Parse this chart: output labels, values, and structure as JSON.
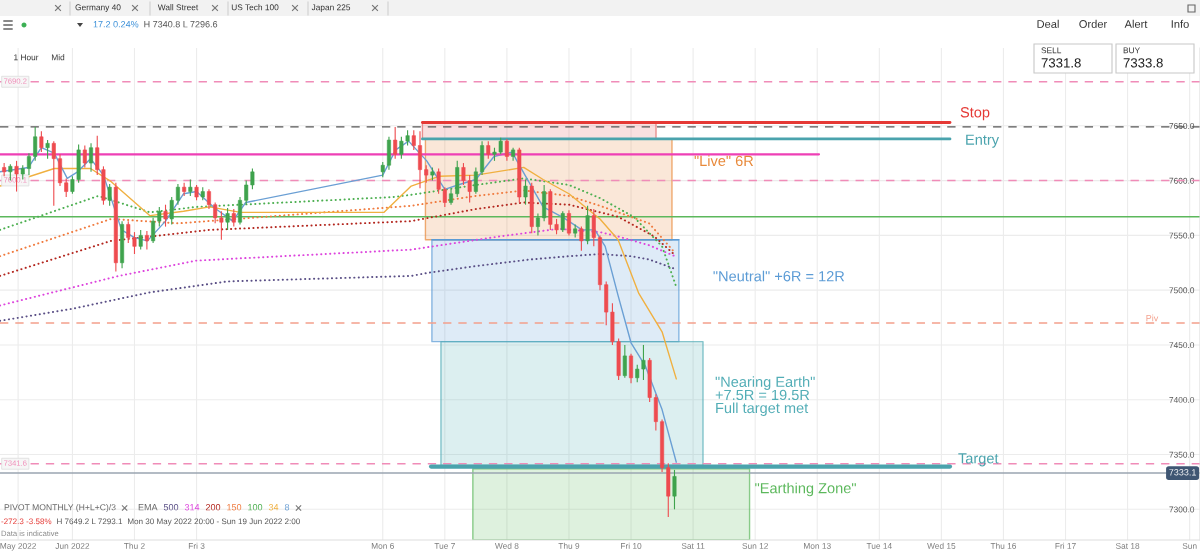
{
  "chart_data": {
    "type": "candlestick",
    "x": [
      "2022-05-30T21:36",
      "2022-05-31T00:00",
      "2022-05-31T02:24",
      "2022-05-31T04:48",
      "2022-05-31T07:12",
      "2022-05-31T09:36",
      "2022-05-31T12:00",
      "2022-05-31T14:24",
      "2022-05-31T16:48",
      "2022-05-31T19:12",
      "2022-05-31T21:36",
      "2022-06-01T00:00",
      "2022-06-01T02:24",
      "2022-06-01T04:48",
      "2022-06-01T07:12",
      "2022-06-01T09:36",
      "2022-06-01T12:00",
      "2022-06-01T14:24",
      "2022-06-01T16:48",
      "2022-06-01T19:12",
      "2022-06-01T21:36",
      "2022-06-02T00:00",
      "2022-06-02T02:24",
      "2022-06-02T04:48",
      "2022-06-02T07:12",
      "2022-06-02T09:36",
      "2022-06-02T12:00",
      "2022-06-02T14:24",
      "2022-06-02T16:48",
      "2022-06-02T19:12",
      "2022-06-02T21:36",
      "2022-06-03T00:00",
      "2022-06-03T02:24",
      "2022-06-03T04:48",
      "2022-06-03T07:12",
      "2022-06-03T09:36",
      "2022-06-03T12:00",
      "2022-06-03T14:24",
      "2022-06-03T16:48",
      "2022-06-03T19:12",
      "2022-06-03T21:36",
      "2022-06-06T00:00",
      "2022-06-06T02:24",
      "2022-06-06T04:48",
      "2022-06-06T07:12",
      "2022-06-06T09:36",
      "2022-06-06T12:00",
      "2022-06-06T14:24",
      "2022-06-06T16:48",
      "2022-06-06T19:12",
      "2022-06-06T21:36",
      "2022-06-07T00:00",
      "2022-06-07T02:24",
      "2022-06-07T04:48",
      "2022-06-07T07:12",
      "2022-06-07T09:36",
      "2022-06-07T12:00",
      "2022-06-07T14:24",
      "2022-06-07T16:48",
      "2022-06-07T19:12",
      "2022-06-07T21:36",
      "2022-06-08T00:00",
      "2022-06-08T02:24",
      "2022-06-08T04:48",
      "2022-06-08T07:12",
      "2022-06-08T09:36",
      "2022-06-08T12:00",
      "2022-06-08T14:24",
      "2022-06-08T16:48",
      "2022-06-08T19:12",
      "2022-06-08T21:36",
      "2022-06-09T00:00",
      "2022-06-09T02:24",
      "2022-06-09T04:48",
      "2022-06-09T07:12",
      "2022-06-09T09:36",
      "2022-06-09T12:00",
      "2022-06-09T14:24",
      "2022-06-09T16:48",
      "2022-06-09T19:12",
      "2022-06-09T21:36",
      "2022-06-10T00:00",
      "2022-06-10T02:24",
      "2022-06-10T04:48",
      "2022-06-10T07:12",
      "2022-06-10T09:36",
      "2022-06-10T12:00",
      "2022-06-10T14:24",
      "2022-06-10T16:48"
    ],
    "ohlc": [
      [
        7612,
        7616,
        7604,
        7608
      ],
      [
        7608,
        7615,
        7600,
        7613
      ],
      [
        7613,
        7618,
        7590,
        7606
      ],
      [
        7606,
        7614,
        7601,
        7611
      ],
      [
        7611,
        7625,
        7605,
        7622
      ],
      [
        7622,
        7649,
        7618,
        7640
      ],
      [
        7640,
        7645,
        7626,
        7630
      ],
      [
        7630,
        7637,
        7620,
        7634
      ],
      [
        7634,
        7636,
        7577,
        7620
      ],
      [
        7620,
        7624,
        7595,
        7598
      ],
      [
        7598,
        7602,
        7585,
        7590
      ],
      [
        7590,
        7604,
        7588,
        7601
      ],
      [
        7601,
        7633,
        7598,
        7628
      ],
      [
        7628,
        7632,
        7612,
        7616
      ],
      [
        7616,
        7634,
        7608,
        7630
      ],
      [
        7630,
        7641,
        7605,
        7610
      ],
      [
        7610,
        7613,
        7578,
        7582
      ],
      [
        7582,
        7597,
        7577,
        7594
      ],
      [
        7594,
        7598,
        7517,
        7525
      ],
      [
        7525,
        7563,
        7520,
        7560
      ],
      [
        7560,
        7563,
        7543,
        7548
      ],
      [
        7548,
        7553,
        7533,
        7540
      ],
      [
        7540,
        7555,
        7537,
        7550
      ],
      [
        7550,
        7554,
        7537,
        7545
      ],
      [
        7545,
        7566,
        7543,
        7563
      ],
      [
        7563,
        7576,
        7558,
        7572
      ],
      [
        7572,
        7578,
        7558,
        7565
      ],
      [
        7565,
        7585,
        7560,
        7582
      ],
      [
        7582,
        7597,
        7578,
        7594
      ],
      [
        7594,
        7598,
        7586,
        7590
      ],
      [
        7590,
        7601,
        7586,
        7594
      ],
      [
        7594,
        7596,
        7582,
        7585
      ],
      [
        7585,
        7594,
        7582,
        7590
      ],
      [
        7590,
        7592,
        7574,
        7578
      ],
      [
        7578,
        7580,
        7561,
        7566
      ],
      [
        7566,
        7572,
        7546,
        7562
      ],
      [
        7562,
        7575,
        7555,
        7570
      ],
      [
        7570,
        7574,
        7558,
        7562
      ],
      [
        7562,
        7585,
        7560,
        7582
      ],
      [
        7582,
        7600,
        7578,
        7596
      ],
      [
        7596,
        7611,
        7592,
        7608
      ],
      [
        7608,
        7617,
        7603,
        7614
      ],
      [
        7614,
        7640,
        7610,
        7637
      ],
      [
        7637,
        7649,
        7620,
        7624
      ],
      [
        7624,
        7640,
        7620,
        7636
      ],
      [
        7636,
        7646,
        7632,
        7641
      ],
      [
        7641,
        7646,
        7628,
        7632
      ],
      [
        7632,
        7645,
        7593,
        7610
      ],
      [
        7610,
        7614,
        7598,
        7605
      ],
      [
        7605,
        7612,
        7600,
        7608
      ],
      [
        7608,
        7611,
        7588,
        7592
      ],
      [
        7592,
        7594,
        7576,
        7580
      ],
      [
        7580,
        7592,
        7578,
        7588
      ],
      [
        7588,
        7618,
        7585,
        7612
      ],
      [
        7612,
        7616,
        7596,
        7600
      ],
      [
        7600,
        7605,
        7580,
        7590
      ],
      [
        7590,
        7612,
        7588,
        7608
      ],
      [
        7608,
        7636,
        7605,
        7632
      ],
      [
        7632,
        7636,
        7620,
        7624
      ],
      [
        7624,
        7630,
        7618,
        7626
      ],
      [
        7626,
        7639,
        7624,
        7636
      ],
      [
        7636,
        7638,
        7618,
        7622
      ],
      [
        7622,
        7630,
        7618,
        7628
      ],
      [
        7628,
        7630,
        7580,
        7585
      ],
      [
        7585,
        7601,
        7578,
        7595
      ],
      [
        7595,
        7598,
        7552,
        7558
      ],
      [
        7558,
        7570,
        7550,
        7566
      ],
      [
        7566,
        7596,
        7563,
        7590
      ],
      [
        7590,
        7592,
        7555,
        7560
      ],
      [
        7560,
        7565,
        7551,
        7555
      ],
      [
        7555,
        7572,
        7553,
        7570
      ],
      [
        7570,
        7573,
        7550,
        7552
      ],
      [
        7552,
        7560,
        7548,
        7556
      ],
      [
        7556,
        7558,
        7536,
        7545
      ],
      [
        7545,
        7577,
        7542,
        7568
      ],
      [
        7568,
        7574,
        7540,
        7548
      ],
      [
        7548,
        7550,
        7500,
        7505
      ],
      [
        7505,
        7508,
        7468,
        7480
      ],
      [
        7480,
        7488,
        7450,
        7453
      ],
      [
        7453,
        7456,
        7418,
        7422
      ],
      [
        7422,
        7450,
        7420,
        7440
      ],
      [
        7440,
        7442,
        7415,
        7420
      ],
      [
        7420,
        7432,
        7416,
        7428
      ],
      [
        7428,
        7450,
        7418,
        7436
      ],
      [
        7436,
        7438,
        7398,
        7402
      ],
      [
        7402,
        7405,
        7372,
        7380
      ],
      [
        7380,
        7382,
        7334,
        7338
      ],
      [
        7338,
        7342,
        7293.1,
        7312
      ],
      [
        7312,
        7336,
        7300,
        7330
      ]
    ],
    "colors": [
      "#ee4b4f",
      "#3fa34d",
      "#ee4b4f",
      "#3fa34d",
      "#3fa34d",
      "#3fa34d",
      "#ee4b4f",
      "#3fa34d",
      "#ee4b4f",
      "#ee4b4f",
      "#ee4b4f",
      "#3fa34d",
      "#3fa34d",
      "#ee4b4f",
      "#3fa34d",
      "#ee4b4f",
      "#ee4b4f",
      "#3fa34d",
      "#ee4b4f",
      "#3fa34d",
      "#ee4b4f",
      "#ee4b4f",
      "#3fa34d",
      "#ee4b4f",
      "#3fa34d",
      "#3fa34d",
      "#ee4b4f",
      "#3fa34d",
      "#3fa34d",
      "#ee4b4f",
      "#3fa34d",
      "#ee4b4f",
      "#3fa34d",
      "#ee4b4f",
      "#ee4b4f",
      "#ee4b4f",
      "#3fa34d",
      "#ee4b4f",
      "#3fa34d",
      "#3fa34d",
      "#3fa34d",
      "#3fa34d",
      "#3fa34d",
      "#ee4b4f",
      "#3fa34d",
      "#3fa34d",
      "#ee4b4f",
      "#ee4b4f",
      "#ee4b4f",
      "#3fa34d",
      "#ee4b4f",
      "#ee4b4f",
      "#3fa34d",
      "#3fa34d",
      "#ee4b4f",
      "#ee4b4f",
      "#3fa34d",
      "#3fa34d",
      "#ee4b4f",
      "#3fa34d",
      "#3fa34d",
      "#ee4b4f",
      "#3fa34d",
      "#ee4b4f",
      "#3fa34d",
      "#ee4b4f",
      "#3fa34d",
      "#3fa34d",
      "#ee4b4f",
      "#ee4b4f",
      "#3fa34d",
      "#ee4b4f",
      "#3fa34d",
      "#ee4b4f",
      "#3fa34d",
      "#ee4b4f",
      "#ee4b4f",
      "#ee4b4f",
      "#ee4b4f",
      "#ee4b4f",
      "#3fa34d",
      "#ee4b4f",
      "#3fa34d",
      "#3fa34d",
      "#ee4b4f",
      "#ee4b4f",
      "#ee4b4f",
      "#ee4b4f",
      "#3fa34d"
    ],
    "xlim": [
      "2022-05-30T20:00",
      "2022-06-19T04:00"
    ],
    "ylim": [
      7272,
      7721
    ],
    "xticks": [
      {
        "value": "2022-05-31T03:00",
        "label": "May 2022"
      },
      {
        "value": "2022-06-01",
        "label": "Jun 2022"
      },
      {
        "value": "2022-06-02",
        "label": "Thu 2"
      },
      {
        "value": "2022-06-03",
        "label": "Fri 3"
      },
      {
        "value": "2022-06-06",
        "label": "Mon 6"
      },
      {
        "value": "2022-06-07",
        "label": "Tue 7"
      },
      {
        "value": "2022-06-08",
        "label": "Wed 8"
      },
      {
        "value": "2022-06-09",
        "label": "Thu 9"
      },
      {
        "value": "2022-06-10",
        "label": "Fri 10"
      },
      {
        "value": "2022-06-11",
        "label": "Sat 11"
      },
      {
        "value": "2022-06-12",
        "label": "Sun 12"
      },
      {
        "value": "2022-06-13",
        "label": "Mon 13"
      },
      {
        "value": "2022-06-14",
        "label": "Tue 14"
      },
      {
        "value": "2022-06-15",
        "label": "Wed 15"
      },
      {
        "value": "2022-06-16",
        "label": "Thu 16"
      },
      {
        "value": "2022-06-17",
        "label": "Fri 17"
      },
      {
        "value": "2022-06-18",
        "label": "Sat 18"
      },
      {
        "value": "2022-06-19",
        "label": "Sun"
      }
    ],
    "yticks": [
      {
        "value": 7300,
        "label": "7300.0"
      },
      {
        "value": 7350,
        "label": "7350.0"
      },
      {
        "value": 7400,
        "label": "7400.0"
      },
      {
        "value": 7450,
        "label": "7450.0"
      },
      {
        "value": 7500,
        "label": "7500.0"
      },
      {
        "value": 7550,
        "label": "7550.0"
      },
      {
        "value": 7600,
        "label": "7600.0"
      },
      {
        "value": 7650,
        "label": "7650.0"
      }
    ],
    "grid": true,
    "legend": "bottom left",
    "legend_title": "EMA",
    "ref_lines": [
      {
        "axis": "y",
        "value": 7690.2,
        "label": "7690.2",
        "color": "#f08cb8",
        "line_style": "dashed"
      },
      {
        "axis": "y",
        "value": 7649,
        "color": "#555555",
        "line_style": "dashed"
      },
      {
        "axis": "y",
        "value": 7600.1,
        "label": "7600.1",
        "color": "#f08cb8",
        "line_style": "dashed"
      },
      {
        "axis": "y",
        "value": 7567,
        "color": "#5cb85c",
        "line_style": "solid"
      },
      {
        "axis": "y",
        "value": 7470,
        "label": "Piv",
        "color": "#f3a08c",
        "line_style": "dashed"
      },
      {
        "axis": "y",
        "value": 7341.6,
        "label": "7341.6",
        "color": "#f08cb8",
        "line_style": "dashed"
      },
      {
        "axis": "y",
        "value": 7333.1,
        "label": "7333.1",
        "color": "#9aa5b1",
        "line_style": "solid"
      }
    ],
    "series": [
      {
        "type": "line",
        "x": [
          "2022-06-06T15:20",
          "2022-06-10T09:40"
        ],
        "values": [
          null,
          null
        ],
        "lower": [
          7638,
          7638
        ],
        "upper": [
          7653,
          7653
        ],
        "color": "#e06666"
      },
      {
        "type": "line",
        "name": "\"Live\" 6R",
        "x": [
          "2022-06-06T16:30",
          "2022-06-10T15:50"
        ],
        "values": [
          null,
          null
        ],
        "lower": [
          7546,
          7546
        ],
        "upper": [
          7638,
          7638
        ],
        "color": "#e8893a"
      },
      {
        "type": "line",
        "name": "\"Neutral\" +6R = 12R",
        "x": [
          "2022-06-06T19:00",
          "2022-06-10T18:30"
        ],
        "values": [
          7546,
          7546
        ],
        "lower": [
          7453,
          7453
        ],
        "upper": [
          7546,
          7546
        ],
        "color": "#5b9bd5"
      },
      {
        "type": "line",
        "name": "\"Nearing Earth\"\n+7.5R = 19.5R\nFull target met",
        "x": [
          "2022-06-06T22:30",
          "2022-06-11T03:50"
        ],
        "values": [
          null,
          null
        ],
        "lower": [
          7340,
          7340
        ],
        "upper": [
          7453,
          7453
        ],
        "color": "#52adb6"
      },
      {
        "type": "line",
        "name": "\"Earthing Zone\"",
        "x": [
          "2022-06-07T10:50",
          "2022-06-11T21:50"
        ],
        "values": [
          null,
          null
        ],
        "lower": [
          7272,
          7272
        ],
        "upper": [
          7337,
          7337
        ],
        "color": "#5cb85c"
      },
      {
        "type": "line",
        "name": "500",
        "color": "#5a4f86",
        "line_style": "dotted",
        "x": [
          "2022-05-30T20:00",
          "2022-06-01T00:00",
          "2022-06-02T06:00",
          "2022-06-03T12:00",
          "2022-06-06T11:00",
          "2022-06-06T18:00",
          "2022-06-07T12:00",
          "2022-06-08T09:00",
          "2022-06-09T00:00",
          "2022-06-09T12:00",
          "2022-06-10T00:00",
          "2022-06-10T07:00",
          "2022-06-10T17:30"
        ],
        "values": [
          7472,
          7483,
          7498,
          7508,
          7513,
          7516,
          7522,
          7528,
          7531,
          7533,
          7531,
          7528,
          7519
        ]
      },
      {
        "type": "line",
        "name": "314",
        "color": "#dd44dd",
        "line_style": "dotted",
        "x": [
          "2022-05-30T20:00",
          "2022-06-01T18:00",
          "2022-06-03T00:00",
          "2022-06-06T11:00",
          "2022-06-07T21:00",
          "2022-06-08T20:00",
          "2022-06-09T12:00",
          "2022-06-09T19:00",
          "2022-06-10T07:00",
          "2022-06-10T17:00"
        ],
        "values": [
          7486,
          7513,
          7527,
          7537,
          7549,
          7556,
          7553,
          7549,
          7541,
          7531
        ]
      },
      {
        "type": "line",
        "name": "200",
        "color": "#b3261e",
        "line_style": "dotted",
        "x": [
          "2022-05-30T20:00",
          "2022-06-01T15:00",
          "2022-06-03T05:00",
          "2022-06-06T11:00",
          "2022-06-07T12:00",
          "2022-06-08T06:30",
          "2022-06-09T00:00",
          "2022-06-09T19:00",
          "2022-06-10T09:00",
          "2022-06-10T17:00"
        ],
        "values": [
          7513,
          7545,
          7555,
          7563,
          7574,
          7580,
          7578,
          7567,
          7549,
          7532
        ]
      },
      {
        "type": "line",
        "name": "150",
        "color": "#f07b3f",
        "line_style": "dotted",
        "x": [
          "2022-05-30T20:00",
          "2022-06-01T15:00",
          "2022-06-02T17:00",
          "2022-06-06T11:00",
          "2022-06-07T12:00",
          "2022-06-08T06:30",
          "2022-06-09T00:00",
          "2022-06-09T12:00",
          "2022-06-10T07:00",
          "2022-06-10T17:00"
        ],
        "values": [
          7531,
          7565,
          7561,
          7577,
          7586,
          7591,
          7586,
          7577,
          7561,
          7534
        ]
      },
      {
        "type": "line",
        "name": "100",
        "color": "#4caf50",
        "line_style": "dotted",
        "x": [
          "2022-05-30T20:00",
          "2022-06-01T10:00",
          "2022-06-02T06:00",
          "2022-06-03T00:00",
          "2022-06-06T04:00",
          "2022-06-06T11:00",
          "2022-06-07T12:00",
          "2022-06-08T06:30",
          "2022-06-09T00:00",
          "2022-06-09T12:00",
          "2022-06-10T01:00",
          "2022-06-10T12:00",
          "2022-06-10T17:30"
        ],
        "values": [
          7555,
          7586,
          7571,
          7576,
          7585,
          7587,
          7596,
          7602,
          7596,
          7584,
          7567,
          7540,
          7503
        ]
      },
      {
        "type": "line",
        "name": "34",
        "color": "#f0b040",
        "line_style": "solid",
        "x": [
          "2022-05-30T20:00",
          "2022-05-31T17:00",
          "2022-06-01T07:00",
          "2022-06-01T15:00",
          "2022-06-02T06:00",
          "2022-06-02T19:00",
          "2022-06-03T05:00",
          "2022-06-03T17:00",
          "2022-06-06T00:30",
          "2022-06-06T11:00",
          "2022-06-06T22:00",
          "2022-06-07T12:00",
          "2022-06-08T06:30",
          "2022-06-08T14:00",
          "2022-06-09T00:00",
          "2022-06-09T12:00",
          "2022-06-09T19:00",
          "2022-06-10T03:00",
          "2022-06-10T12:00",
          "2022-06-10T17:30"
        ],
        "values": [
          7595,
          7611,
          7611,
          7599,
          7568,
          7572,
          7576,
          7571,
          7571,
          7595,
          7604,
          7605,
          7612,
          7601,
          7588,
          7565,
          7546,
          7497,
          7462,
          7419
        ]
      },
      {
        "type": "line",
        "name": "8",
        "color": "#6a9fd4",
        "line_style": "solid",
        "x": [
          "2022-05-30T20:00",
          "2022-05-31T07:00",
          "2022-05-31T12:00",
          "2022-05-31T17:00",
          "2022-05-31T22:00",
          "2022-06-01T02:00",
          "2022-06-01T07:00",
          "2022-06-01T12:00",
          "2022-06-01T19:00",
          "2022-06-02T00:00",
          "2022-06-02T05:00",
          "2022-06-02T12:00",
          "2022-06-02T19:00",
          "2022-06-03T00:00",
          "2022-06-03T07:00",
          "2022-06-03T14:00",
          "2022-06-03T19:00",
          "2022-06-06T00:00",
          "2022-06-06T05:00",
          "2022-06-06T10:00",
          "2022-06-06T17:00",
          "2022-06-07T00:00",
          "2022-06-07T05:00",
          "2022-06-07T12:00",
          "2022-06-07T19:00",
          "2022-06-08T02:00",
          "2022-06-08T07:00",
          "2022-06-08T14:00",
          "2022-06-08T22:00",
          "2022-06-09T05:00",
          "2022-06-09T10:00",
          "2022-06-09T14:00",
          "2022-06-09T19:00",
          "2022-06-10T00:00",
          "2022-06-10T05:30",
          "2022-06-10T12:00",
          "2022-06-10T17:30"
        ],
        "values": [
          7608,
          7612,
          7630,
          7625,
          7602,
          7608,
          7620,
          7605,
          7555,
          7548,
          7545,
          7563,
          7588,
          7590,
          7575,
          7563,
          7580,
          7605,
          7628,
          7636,
          7618,
          7592,
          7596,
          7601,
          7622,
          7626,
          7605,
          7576,
          7566,
          7555,
          7555,
          7540,
          7495,
          7452,
          7431,
          7391,
          7343
        ]
      },
      {
        "type": "line",
        "color": "#ee3fb5",
        "line_style": "solid",
        "x": [
          "2022-05-30T20:00",
          "2022-06-13T00:40"
        ],
        "values": [
          7624,
          7624
        ]
      },
      {
        "type": "line",
        "name": "Stop",
        "color": "#e53935",
        "line_style": "solid",
        "x": [
          "2022-06-06T15:20",
          "2022-06-15T03:20"
        ],
        "values": [
          7653,
          7653
        ]
      },
      {
        "type": "line",
        "name": "Entry",
        "color": "#4aa3ad",
        "line_style": "solid",
        "x": [
          "2022-06-06T15:20",
          "2022-06-15T03:20"
        ],
        "values": [
          7638,
          7638
        ]
      },
      {
        "type": "line",
        "name": "Target",
        "color": "#4aa3ad",
        "line_style": "solid",
        "x": [
          "2022-06-06T18:40",
          "2022-06-15T03:20"
        ],
        "values": [
          7339,
          7339
        ]
      }
    ],
    "annotations": [
      "Germany 40",
      "Wall Street",
      "US Tech 100",
      "Japan 225",
      "17.2 0.24%",
      "H 7340.8 L 7296.6",
      "Deal",
      "Order",
      "Alert",
      "Info",
      "1 Hour",
      "Mid",
      "SELL",
      "7331.8",
      "BUY",
      "7333.8",
      "PIVOT MONTHLY (H+L+C)/3",
      "-272.3 -3.58%",
      "H 7649.2 L 7293.1",
      "Mon 30 May 2022 20:00 - Sun 19 Jun 2022 2:00",
      "Data is indicative"
    ]
  }
}
